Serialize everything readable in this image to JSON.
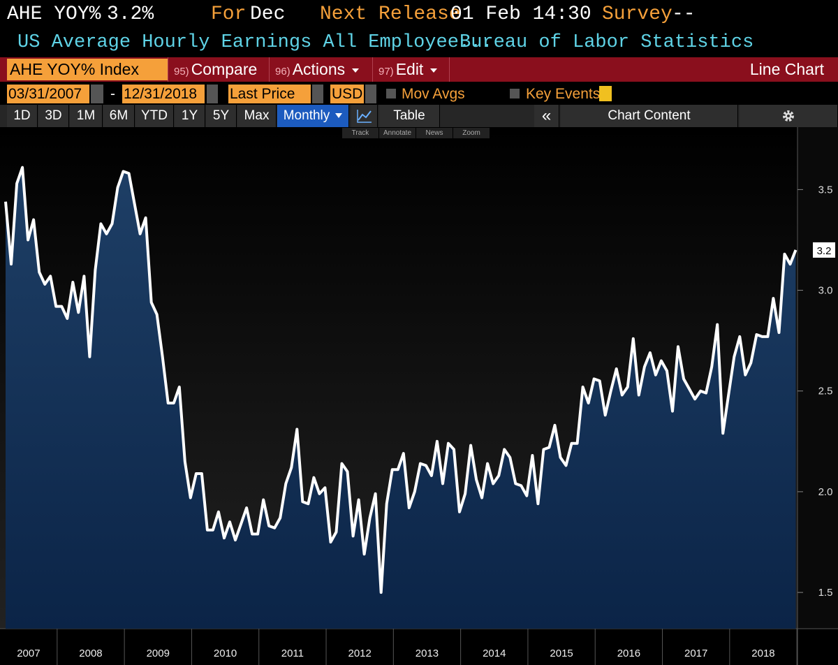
{
  "header": {
    "ticker": "AHE YOY%",
    "last": "3.2%",
    "for_label": "For",
    "period": "Dec",
    "next_label": "Next Release",
    "next_date": "01 Feb 14:30",
    "survey_label": "Survey",
    "survey": "--",
    "name": "US Average Hourly Earnings All Employee...",
    "source": "Bureau of Labor Statistics"
  },
  "toolbar": {
    "security": "AHE YOY% Index",
    "buttons": [
      {
        "num": "95)",
        "label": "Compare"
      },
      {
        "num": "96)",
        "label": "Actions"
      },
      {
        "num": "97)",
        "label": "Edit"
      }
    ],
    "chart_type": "Line Chart"
  },
  "controls": {
    "start": "03/31/2007",
    "sep": "-",
    "end": "12/31/2018",
    "field": "Last Price",
    "currency": "USD",
    "mov_avgs": "Mov Avgs",
    "key_events": "Key Events"
  },
  "periods": [
    "1D",
    "3D",
    "1M",
    "6M",
    "YTD",
    "1Y",
    "5Y",
    "Max"
  ],
  "frequency": "Monthly",
  "table": "Table",
  "collapse": "«",
  "chart_content": "Chart Content",
  "mini_toolbar": [
    "Track",
    "Annotate",
    "News",
    "Zoom"
  ],
  "chart_data": {
    "type": "line",
    "color": "#ffffff",
    "area_color": "#12325a",
    "values": [
      3.44,
      3.13,
      3.53,
      3.61,
      3.25,
      3.35,
      3.09,
      3.03,
      3.07,
      2.92,
      2.92,
      2.86,
      3.04,
      2.89,
      3.07,
      2.67,
      3.1,
      3.33,
      3.28,
      3.33,
      3.51,
      3.59,
      3.58,
      3.43,
      3.28,
      3.36,
      2.94,
      2.88,
      2.67,
      2.44,
      2.44,
      2.52,
      2.15,
      1.97,
      2.09,
      2.09,
      1.81,
      1.81,
      1.9,
      1.77,
      1.85,
      1.76,
      1.84,
      1.92,
      1.79,
      1.79,
      1.96,
      1.83,
      1.82,
      1.87,
      2.04,
      2.12,
      2.31,
      1.95,
      1.94,
      2.07,
      1.99,
      2.02,
      1.75,
      1.8,
      2.14,
      2.1,
      1.78,
      1.96,
      1.69,
      1.87,
      1.99,
      1.5,
      1.94,
      2.11,
      2.11,
      2.19,
      1.92,
      2.0,
      2.14,
      2.13,
      2.08,
      2.25,
      2.04,
      2.24,
      2.21,
      1.9,
      1.99,
      2.23,
      2.06,
      1.97,
      2.14,
      2.04,
      2.08,
      2.21,
      2.17,
      2.04,
      2.03,
      1.98,
      2.18,
      1.94,
      2.21,
      2.22,
      2.33,
      2.17,
      2.13,
      2.24,
      2.24,
      2.52,
      2.44,
      2.56,
      2.55,
      2.38,
      2.5,
      2.61,
      2.48,
      2.52,
      2.76,
      2.48,
      2.62,
      2.69,
      2.58,
      2.65,
      2.6,
      2.4,
      2.72,
      2.56,
      2.51,
      2.46,
      2.5,
      2.49,
      2.62,
      2.83,
      2.29,
      2.48,
      2.67,
      2.77,
      2.58,
      2.64,
      2.78,
      2.77,
      2.77,
      2.96,
      2.79,
      3.18,
      3.13,
      3.2
    ],
    "ylim": [
      1.32,
      3.81
    ],
    "yticks": [
      1.5,
      {
        "value": 2,
        "label": "2.0"
      },
      2.5,
      {
        "value": 3,
        "label": "3.0"
      },
      3.5
    ],
    "xticks": [
      2007,
      2008,
      2009,
      2010,
      2011,
      2012,
      2013,
      2014,
      2015,
      2016,
      2017,
      2018
    ]
  }
}
